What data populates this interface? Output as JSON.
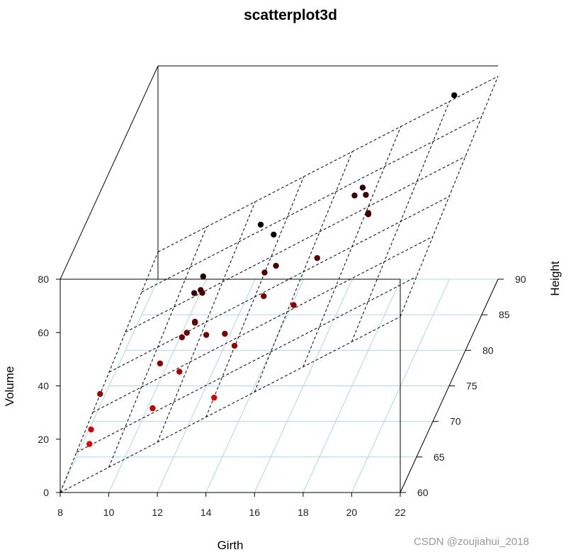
{
  "chart_data": {
    "type": "scatter",
    "subtype": "3d",
    "title": "scatterplot3d",
    "xlabel": "Girth",
    "ylabel": "Height",
    "zlabel": "Volume",
    "xlim": [
      8,
      22
    ],
    "ylim": [
      60,
      90
    ],
    "zlim": [
      0,
      80
    ],
    "x_ticks": [
      8,
      10,
      12,
      14,
      16,
      18,
      20,
      22
    ],
    "y_ticks": [
      60,
      65,
      70,
      75,
      80,
      85,
      90
    ],
    "z_ticks": [
      0,
      20,
      40,
      60,
      80
    ],
    "grid": true,
    "regression_plane": true,
    "points": [
      {
        "girth": 8.3,
        "height": 70,
        "volume": 10.3
      },
      {
        "girth": 8.6,
        "height": 65,
        "volume": 10.3
      },
      {
        "girth": 8.8,
        "height": 63,
        "volume": 10.2
      },
      {
        "girth": 10.5,
        "height": 72,
        "volume": 16.4
      },
      {
        "girth": 10.7,
        "height": 81,
        "volume": 18.8
      },
      {
        "girth": 10.8,
        "height": 83,
        "volume": 19.7
      },
      {
        "girth": 11.0,
        "height": 66,
        "volume": 15.6
      },
      {
        "girth": 11.0,
        "height": 75,
        "volume": 18.2
      },
      {
        "girth": 11.1,
        "height": 80,
        "volume": 22.6
      },
      {
        "girth": 11.2,
        "height": 75,
        "volume": 19.9
      },
      {
        "girth": 11.3,
        "height": 79,
        "volume": 24.2
      },
      {
        "girth": 11.4,
        "height": 76,
        "volume": 21.0
      },
      {
        "girth": 11.4,
        "height": 76,
        "volume": 21.4
      },
      {
        "girth": 11.7,
        "height": 69,
        "volume": 21.3
      },
      {
        "girth": 12.0,
        "height": 75,
        "volume": 19.1
      },
      {
        "girth": 12.9,
        "height": 74,
        "volume": 22.2
      },
      {
        "girth": 12.9,
        "height": 85,
        "volume": 33.8
      },
      {
        "girth": 13.3,
        "height": 86,
        "volume": 27.4
      },
      {
        "girth": 13.7,
        "height": 71,
        "volume": 25.7
      },
      {
        "girth": 13.8,
        "height": 64,
        "volume": 24.9
      },
      {
        "girth": 14.0,
        "height": 78,
        "volume": 34.5
      },
      {
        "girth": 14.2,
        "height": 80,
        "volume": 31.7
      },
      {
        "girth": 14.5,
        "height": 74,
        "volume": 36.3
      },
      {
        "girth": 16.0,
        "height": 72,
        "volume": 38.3
      },
      {
        "girth": 16.3,
        "height": 77,
        "volume": 42.6
      },
      {
        "girth": 17.3,
        "height": 81,
        "volume": 55.4
      },
      {
        "girth": 17.5,
        "height": 82,
        "volume": 55.7
      },
      {
        "girth": 17.9,
        "height": 80,
        "volume": 58.3
      },
      {
        "girth": 18.0,
        "height": 80,
        "volume": 51.5
      },
      {
        "girth": 18.0,
        "height": 80,
        "volume": 51.0
      },
      {
        "girth": 20.6,
        "height": 87,
        "volume": 77.0
      }
    ],
    "colors": {
      "low": "#ff0000",
      "high": "#000000",
      "grid": "#add8e6",
      "box": "#000000"
    }
  },
  "watermark": "CSDN @zoujiahui_2018"
}
